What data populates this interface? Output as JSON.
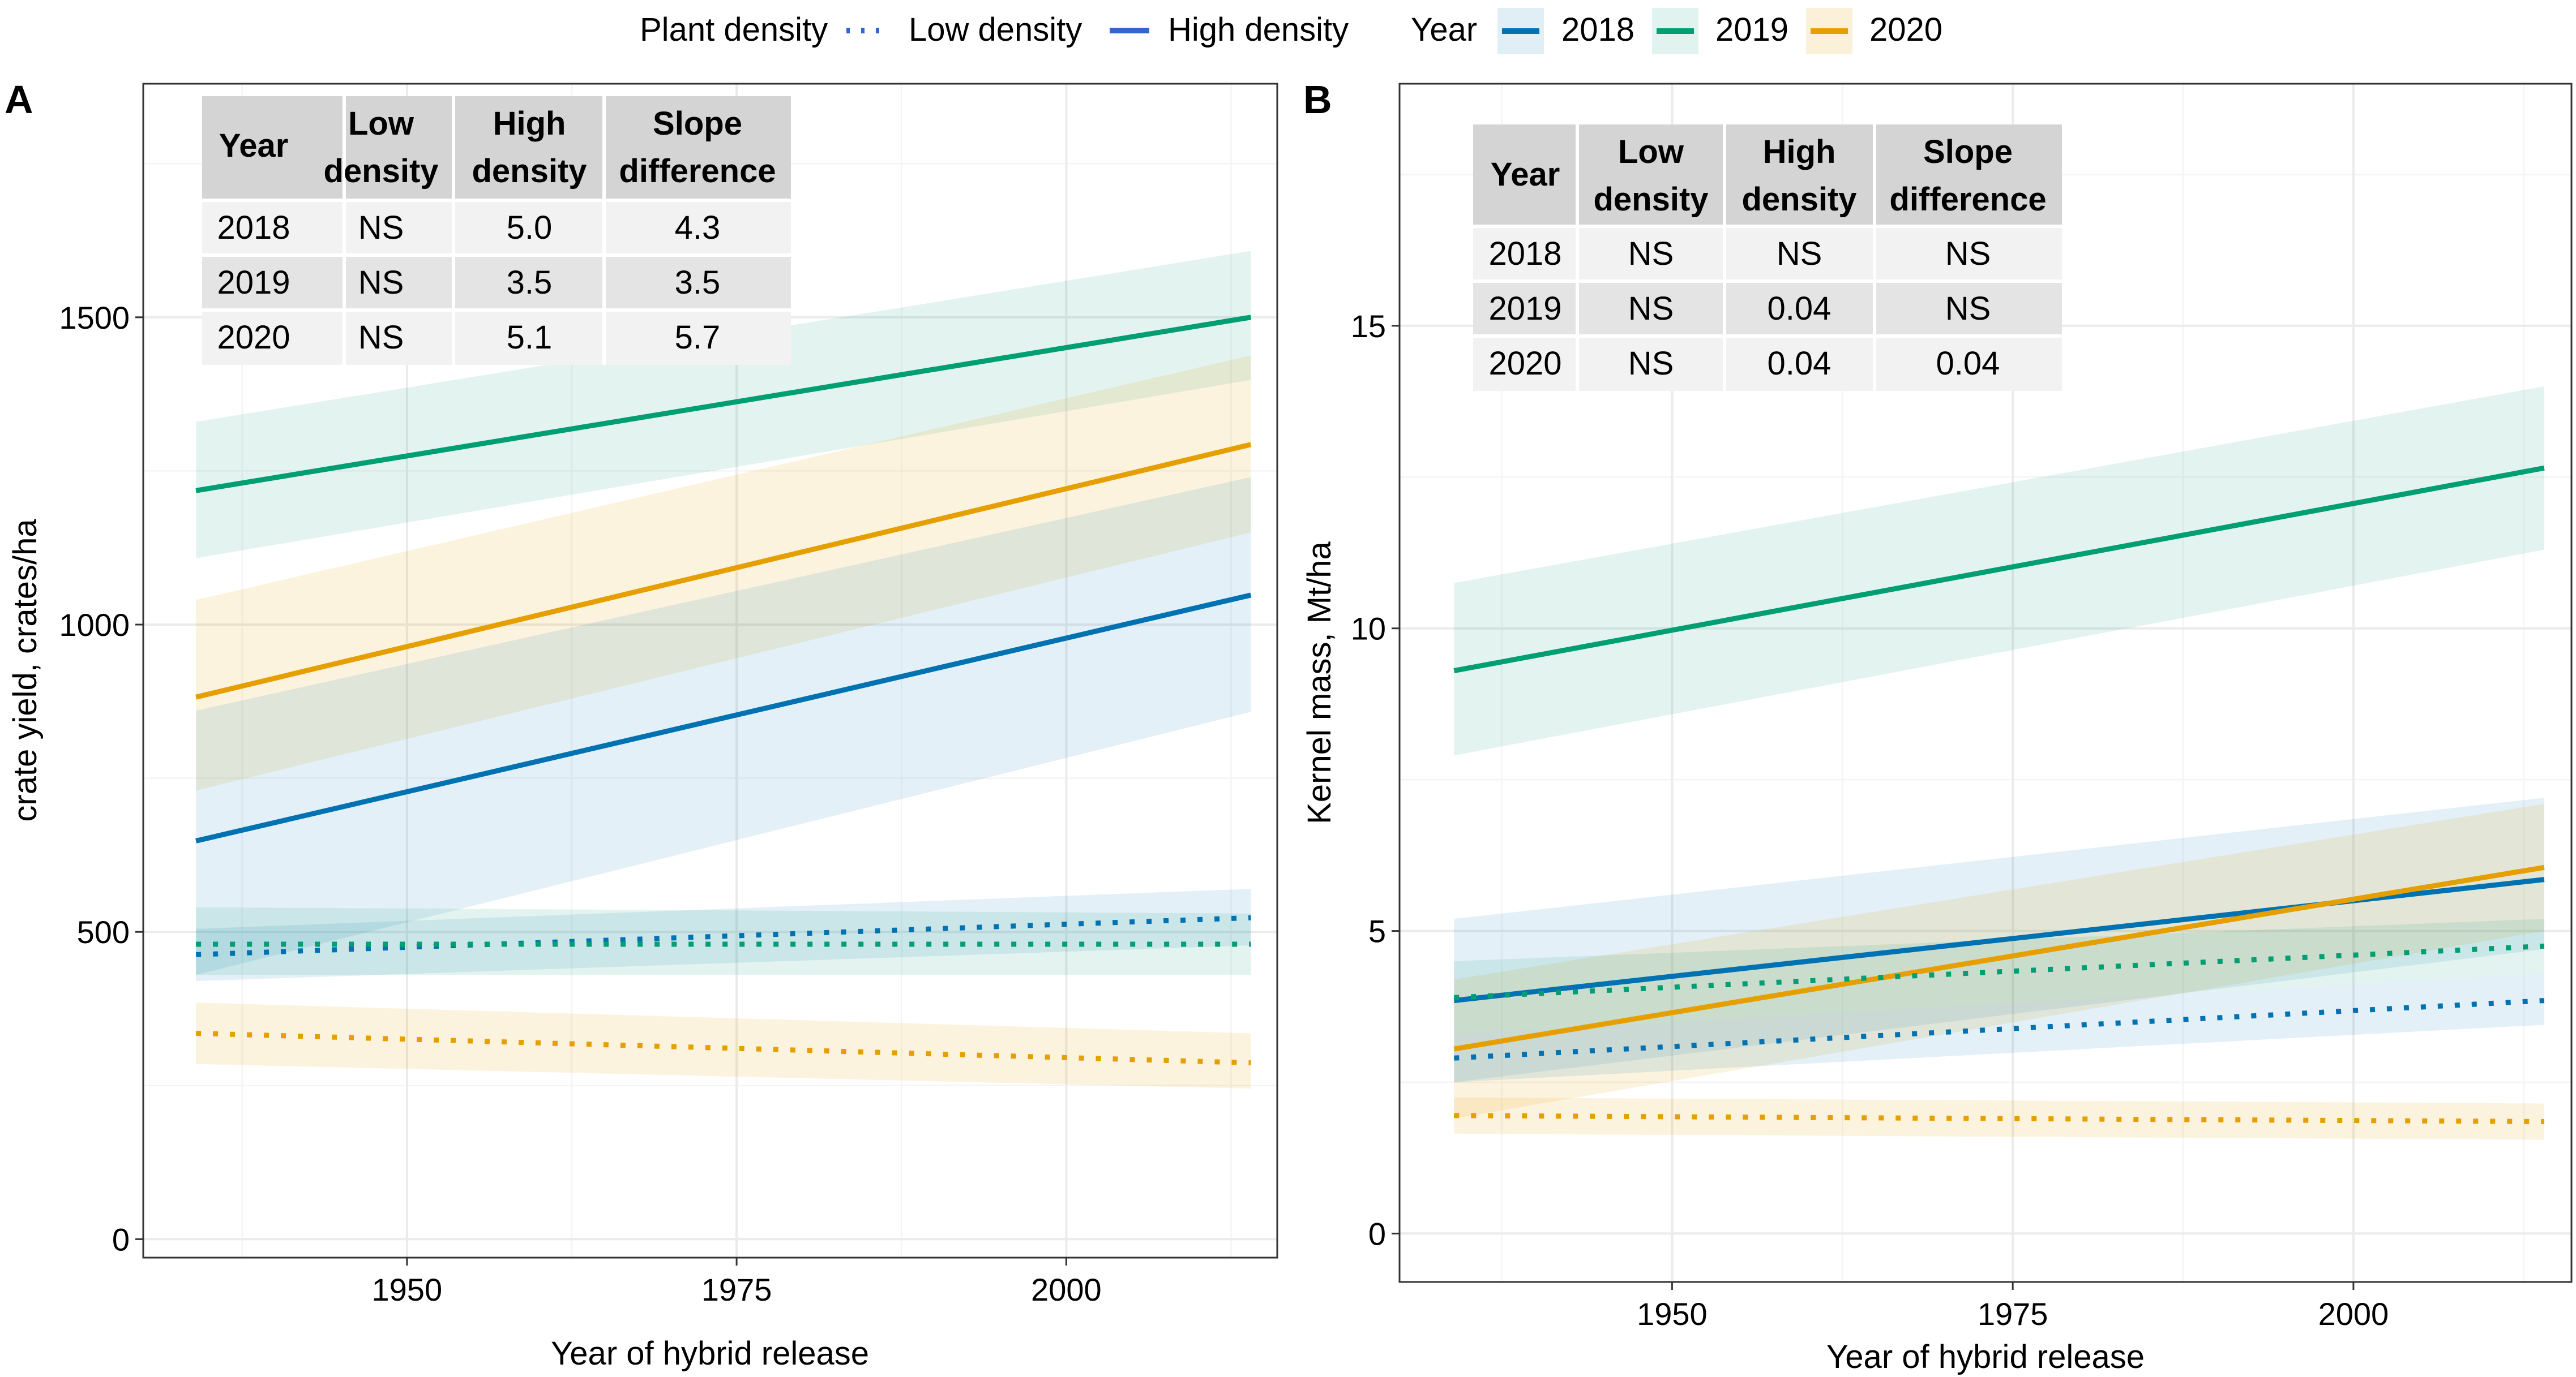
{
  "legend": {
    "density_title": "Plant density",
    "density_items": [
      {
        "label": "Low density",
        "style": "dotted",
        "color": "#3366CC"
      },
      {
        "label": "High density",
        "style": "solid",
        "color": "#3366CC"
      }
    ],
    "year_title": "Year",
    "year_items": [
      {
        "label": "2018",
        "color": "#0072B2"
      },
      {
        "label": "2019",
        "color": "#009E73"
      },
      {
        "label": "2020",
        "color": "#E69F00"
      }
    ]
  },
  "colors": {
    "2018": "#0072B2",
    "2019": "#009E73",
    "2020": "#E69F00"
  },
  "chart_data": [
    {
      "type": "line",
      "panel_label": "A",
      "xlabel": "Year of hybrid release",
      "ylabel": "crate yield, crates/ha",
      "xlim": [
        1930,
        2016
      ],
      "ylim": [
        -30,
        1880
      ],
      "xticks": [
        1950,
        1975,
        2000
      ],
      "yticks": [
        0,
        500,
        1000,
        1500
      ],
      "x": [
        1934,
        2014
      ],
      "series": [
        {
          "year": "2019",
          "density": "High density",
          "values": [
            1218,
            1500
          ],
          "ci_lower": [
            1108,
            1398
          ],
          "ci_upper": [
            1330,
            1608
          ]
        },
        {
          "year": "2020",
          "density": "High density",
          "values": [
            882,
            1293
          ],
          "ci_lower": [
            730,
            1150
          ],
          "ci_upper": [
            1040,
            1438
          ]
        },
        {
          "year": "2018",
          "density": "High density",
          "values": [
            648,
            1048
          ],
          "ci_lower": [
            430,
            858
          ],
          "ci_upper": [
            860,
            1240
          ]
        },
        {
          "year": "2018",
          "density": "Low density",
          "values": [
            463,
            523
          ],
          "ci_lower": [
            420,
            478
          ],
          "ci_upper": [
            505,
            570
          ]
        },
        {
          "year": "2019",
          "density": "Low density",
          "values": [
            480,
            480
          ],
          "ci_lower": [
            430,
            430
          ],
          "ci_upper": [
            540,
            530
          ]
        },
        {
          "year": "2020",
          "density": "Low density",
          "values": [
            335,
            287
          ],
          "ci_lower": [
            285,
            245
          ],
          "ci_upper": [
            385,
            335
          ]
        }
      ],
      "table": {
        "headers": [
          [
            "Year"
          ],
          [
            "Low",
            "density"
          ],
          [
            "High",
            "density"
          ],
          [
            "Slope",
            "difference"
          ]
        ],
        "rows": [
          [
            "2018",
            "NS",
            "5.0",
            "4.3"
          ],
          [
            "2019",
            "NS",
            "3.5",
            "3.5"
          ],
          [
            "2020",
            "NS",
            "5.1",
            "5.7"
          ]
        ]
      }
    },
    {
      "type": "line",
      "panel_label": "B",
      "xlabel": "Year of hybrid release",
      "ylabel": "Kernel mass, Mt/ha",
      "xlim": [
        1930,
        2016
      ],
      "ylim": [
        -0.8,
        19.0
      ],
      "xticks": [
        1950,
        1975,
        2000
      ],
      "yticks": [
        0,
        5,
        10,
        15
      ],
      "x": [
        1934,
        2014
      ],
      "series": [
        {
          "year": "2019",
          "density": "High density",
          "values": [
            9.3,
            12.65
          ],
          "ci_lower": [
            7.9,
            11.3
          ],
          "ci_upper": [
            10.75,
            14.0
          ]
        },
        {
          "year": "2018",
          "density": "High density",
          "values": [
            3.85,
            5.85
          ],
          "ci_lower": [
            2.5,
            4.7
          ],
          "ci_upper": [
            5.2,
            7.2
          ]
        },
        {
          "year": "2020",
          "density": "High density",
          "values": [
            3.05,
            6.05
          ],
          "ci_lower": [
            1.9,
            5.0
          ],
          "ci_upper": [
            4.2,
            7.1
          ]
        },
        {
          "year": "2019",
          "density": "Low density",
          "values": [
            3.9,
            4.75
          ],
          "ci_lower": [
            3.3,
            4.3
          ],
          "ci_upper": [
            4.5,
            5.2
          ]
        },
        {
          "year": "2018",
          "density": "Low density",
          "values": [
            2.9,
            3.85
          ],
          "ci_lower": [
            2.5,
            3.45
          ],
          "ci_upper": [
            3.3,
            4.3
          ]
        },
        {
          "year": "2020",
          "density": "Low density",
          "values": [
            1.95,
            1.85
          ],
          "ci_lower": [
            1.65,
            1.55
          ],
          "ci_upper": [
            2.25,
            2.15
          ]
        }
      ],
      "table": {
        "headers": [
          [
            "Year"
          ],
          [
            "Low",
            "density"
          ],
          [
            "High",
            "density"
          ],
          [
            "Slope",
            "difference"
          ]
        ],
        "rows": [
          [
            "2018",
            "NS",
            "NS",
            "NS"
          ],
          [
            "2019",
            "NS",
            "0.04",
            "NS"
          ],
          [
            "2020",
            "NS",
            "0.04",
            "0.04"
          ]
        ]
      }
    }
  ]
}
